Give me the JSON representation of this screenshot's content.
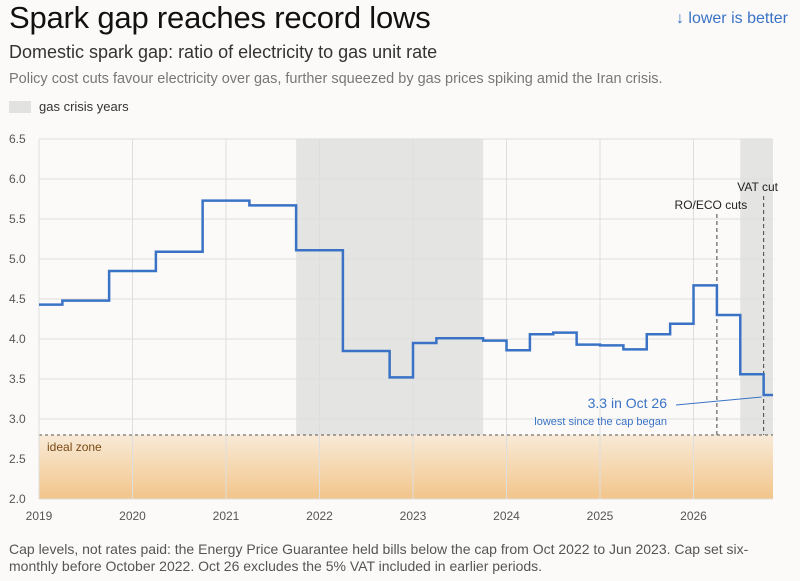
{
  "header": {
    "title": "Spark gap reaches record lows",
    "hint": "↓ lower is better",
    "subtitle": "Domestic spark gap: ratio of electricity to gas unit rate",
    "description": "Policy cost cuts favour electricity over gas, further squeezed by gas prices spiking amid the Iran crisis."
  },
  "legend": {
    "shaded_label": "gas crisis years"
  },
  "footnote": "Cap levels, not rates paid: the Energy Price Guarantee held bills below the cap from Oct 2022 to Jun 2023. Cap set six-monthly before October 2022. Oct 26 excludes the 5% VAT included in earlier periods.",
  "colors": {
    "line": "#3a73c6",
    "shade": "#e4e4e2",
    "zone_top": "#f8ead7",
    "zone_bottom": "#f2c58a",
    "grid": "#dedede",
    "hint": "#3a73c6"
  },
  "chart_data": {
    "type": "line",
    "step": true,
    "ylim": [
      2.0,
      6.5
    ],
    "yticks": [
      "2.0",
      "2.5",
      "3.0",
      "3.5",
      "4.0",
      "4.5",
      "5.0",
      "5.5",
      "6.0",
      "6.5"
    ],
    "xlim": [
      2019.0,
      2026.85
    ],
    "xticks": [
      "2019",
      "2020",
      "2021",
      "2022",
      "2023",
      "2024",
      "2025",
      "2026"
    ],
    "grid": true,
    "series": [
      {
        "values": [
          {
            "x": 2019.0,
            "y": 4.43
          },
          {
            "x": 2019.25,
            "y": 4.48
          },
          {
            "x": 2019.75,
            "y": 4.85
          },
          {
            "x": 2020.25,
            "y": 5.09
          },
          {
            "x": 2020.75,
            "y": 5.73
          },
          {
            "x": 2021.25,
            "y": 5.67
          },
          {
            "x": 2021.75,
            "y": 5.11
          },
          {
            "x": 2022.0,
            "y": 5.11
          },
          {
            "x": 2022.25,
            "y": 3.85
          },
          {
            "x": 2022.75,
            "y": 3.52
          },
          {
            "x": 2023.0,
            "y": 3.95
          },
          {
            "x": 2023.25,
            "y": 4.01
          },
          {
            "x": 2023.75,
            "y": 3.98
          },
          {
            "x": 2024.0,
            "y": 3.86
          },
          {
            "x": 2024.25,
            "y": 4.06
          },
          {
            "x": 2024.5,
            "y": 4.08
          },
          {
            "x": 2024.75,
            "y": 3.93
          },
          {
            "x": 2025.0,
            "y": 3.92
          },
          {
            "x": 2025.25,
            "y": 3.87
          },
          {
            "x": 2025.5,
            "y": 4.06
          },
          {
            "x": 2025.75,
            "y": 4.19
          },
          {
            "x": 2026.0,
            "y": 4.67
          },
          {
            "x": 2026.25,
            "y": 4.3
          },
          {
            "x": 2026.5,
            "y": 3.56
          },
          {
            "x": 2026.75,
            "y": 3.3
          },
          {
            "x": 2026.85,
            "y": 3.3
          }
        ]
      }
    ],
    "shaded_ranges": [
      {
        "from": 2021.75,
        "to": 2023.75
      },
      {
        "from": 2026.5,
        "to": 2026.85
      }
    ],
    "events": [
      {
        "x": 2026.25,
        "label": "RO/ECO cuts"
      },
      {
        "x": 2026.75,
        "label": "VAT cut"
      }
    ],
    "ideal_zone": {
      "from": 2.0,
      "to": 2.8,
      "label": "ideal zone"
    },
    "callout": {
      "x": 2026.75,
      "y": 3.3,
      "text": "3.3 in Oct 26",
      "subtext": "lowest since the cap began"
    }
  }
}
